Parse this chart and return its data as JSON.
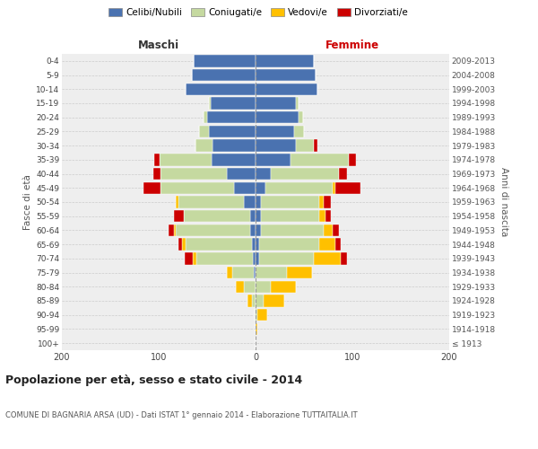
{
  "age_groups": [
    "100+",
    "95-99",
    "90-94",
    "85-89",
    "80-84",
    "75-79",
    "70-74",
    "65-69",
    "60-64",
    "55-59",
    "50-54",
    "45-49",
    "40-44",
    "35-39",
    "30-34",
    "25-29",
    "20-24",
    "15-19",
    "10-14",
    "5-9",
    "0-4"
  ],
  "birth_years": [
    "≤ 1913",
    "1914-1918",
    "1919-1923",
    "1924-1928",
    "1929-1933",
    "1934-1938",
    "1939-1943",
    "1944-1948",
    "1949-1953",
    "1954-1958",
    "1959-1963",
    "1964-1968",
    "1969-1973",
    "1974-1978",
    "1979-1983",
    "1984-1988",
    "1989-1993",
    "1994-1998",
    "1999-2003",
    "2004-2008",
    "2009-2013"
  ],
  "male": {
    "celibi": [
      0,
      0,
      0,
      0,
      0,
      2,
      3,
      4,
      6,
      6,
      12,
      22,
      30,
      45,
      44,
      48,
      50,
      46,
      72,
      66,
      64
    ],
    "coniugati": [
      0,
      0,
      1,
      4,
      12,
      22,
      58,
      68,
      76,
      68,
      68,
      76,
      68,
      54,
      18,
      10,
      4,
      2,
      0,
      0,
      0
    ],
    "vedovi": [
      0,
      0,
      0,
      4,
      8,
      6,
      4,
      4,
      2,
      0,
      2,
      0,
      0,
      0,
      0,
      0,
      0,
      0,
      0,
      0,
      0
    ],
    "divorziati": [
      0,
      0,
      0,
      0,
      0,
      0,
      8,
      4,
      6,
      10,
      0,
      18,
      8,
      6,
      0,
      0,
      0,
      0,
      0,
      0,
      0
    ]
  },
  "female": {
    "nubili": [
      0,
      0,
      0,
      0,
      0,
      0,
      4,
      4,
      6,
      6,
      6,
      10,
      16,
      36,
      42,
      40,
      44,
      42,
      64,
      62,
      60
    ],
    "coniugate": [
      0,
      0,
      2,
      8,
      16,
      32,
      56,
      62,
      64,
      60,
      60,
      70,
      70,
      60,
      18,
      10,
      5,
      2,
      0,
      0,
      0
    ],
    "vedove": [
      0,
      2,
      10,
      22,
      26,
      26,
      28,
      16,
      10,
      6,
      4,
      2,
      0,
      0,
      0,
      0,
      0,
      0,
      0,
      0,
      0
    ],
    "divorziate": [
      0,
      0,
      0,
      0,
      0,
      0,
      6,
      6,
      6,
      6,
      8,
      26,
      8,
      8,
      4,
      0,
      0,
      0,
      0,
      0,
      0
    ]
  },
  "colors": {
    "celibi": "#4a72b0",
    "coniugati": "#c5d9a0",
    "vedovi": "#ffc000",
    "divorziati": "#cc0000"
  },
  "xlim": [
    -200,
    200
  ],
  "xticks": [
    -200,
    -100,
    0,
    100,
    200
  ],
  "xticklabels": [
    "200",
    "100",
    "0",
    "100",
    "200"
  ],
  "title": "Popolazione per età, sesso e stato civile - 2014",
  "subtitle": "COMUNE DI BAGNARIA ARSA (UD) - Dati ISTAT 1° gennaio 2014 - Elaborazione TUTTAITALIA.IT",
  "ylabel_left": "Fasce di età",
  "ylabel_right": "Anni di nascita",
  "label_maschi": "Maschi",
  "label_femmine": "Femmine",
  "legend_labels": [
    "Celibi/Nubili",
    "Coniugati/e",
    "Vedovi/e",
    "Divorziati/e"
  ],
  "bg_color": "#ffffff",
  "plot_bg": "#eeeeee",
  "grid_color": "#cccccc"
}
